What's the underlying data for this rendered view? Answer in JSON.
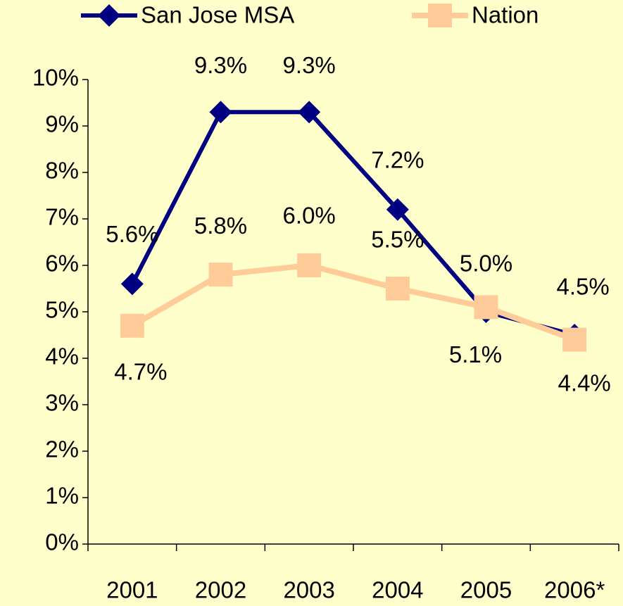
{
  "chart_data": {
    "type": "line",
    "categories": [
      "2001",
      "2002",
      "2003",
      "2004",
      "2005",
      "2006*"
    ],
    "series": [
      {
        "name": "San Jose MSA",
        "color": "#000080",
        "values": [
          5.6,
          9.3,
          9.3,
          7.2,
          5.0,
          4.5
        ],
        "value_labels": [
          "5.6%",
          "9.3%",
          "9.3%",
          "7.2%",
          "5.0%",
          "4.5%"
        ]
      },
      {
        "name": "Nation",
        "color": "#FFCC99",
        "values": [
          4.7,
          5.8,
          6.0,
          5.5,
          5.1,
          4.4
        ],
        "value_labels": [
          "4.7%",
          "5.8%",
          "6.0%",
          "5.5%",
          "5.1%",
          "4.4%"
        ]
      }
    ],
    "ylim": [
      0,
      10
    ],
    "yticks": [
      {
        "value": 0,
        "label": "0%"
      },
      {
        "value": 1,
        "label": "1%"
      },
      {
        "value": 2,
        "label": "2%"
      },
      {
        "value": 3,
        "label": "3%"
      },
      {
        "value": 4,
        "label": "4%"
      },
      {
        "value": 5,
        "label": "5%"
      },
      {
        "value": 6,
        "label": "6%"
      },
      {
        "value": 7,
        "label": "7%"
      },
      {
        "value": 8,
        "label": "8%"
      },
      {
        "value": 9,
        "label": "9%"
      },
      {
        "value": 10,
        "label": "10%"
      }
    ],
    "legend": "top"
  }
}
